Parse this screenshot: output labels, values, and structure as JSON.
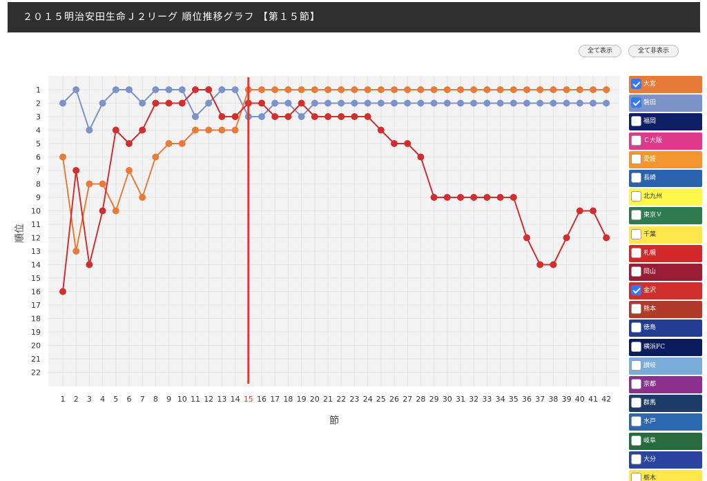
{
  "title": "２０１５明治安田生命Ｊ２リーグ 順位推移グラフ 【第１５節】",
  "buttons": {
    "show_all": "全て表示",
    "hide_all": "全て非表示"
  },
  "teams": [
    {
      "name": "大宮",
      "color": "#e87a3a",
      "checked": true
    },
    {
      "name": "磐田",
      "color": "#7b93c9",
      "checked": true
    },
    {
      "name": "福岡",
      "color": "#0f1f66",
      "checked": false
    },
    {
      "name": "Ｃ大阪",
      "color": "#e0398c",
      "checked": false
    },
    {
      "name": "愛媛",
      "color": "#f3962e",
      "checked": false
    },
    {
      "name": "長崎",
      "color": "#2a62b0",
      "checked": false
    },
    {
      "name": "北九州",
      "color": "#fff64a",
      "checked": false
    },
    {
      "name": "東京Ｖ",
      "color": "#2f7a4e",
      "checked": false
    },
    {
      "name": "千葉",
      "color": "#fde74c",
      "checked": false
    },
    {
      "name": "札幌",
      "color": "#d2292a",
      "checked": false
    },
    {
      "name": "岡山",
      "color": "#9a1c35",
      "checked": false
    },
    {
      "name": "金沢",
      "color": "#d02f2e",
      "checked": true
    },
    {
      "name": "熊本",
      "color": "#b23a2b",
      "checked": false
    },
    {
      "name": "徳島",
      "color": "#233d93",
      "checked": false
    },
    {
      "name": "横浜FC",
      "color": "#0c1a5e",
      "checked": false
    },
    {
      "name": "讃岐",
      "color": "#79acd9",
      "checked": false
    },
    {
      "name": "京都",
      "color": "#8c2f8f",
      "checked": false
    },
    {
      "name": "群馬",
      "color": "#1d3b66",
      "checked": false
    },
    {
      "name": "水戸",
      "color": "#2c68ad",
      "checked": false
    },
    {
      "name": "岐阜",
      "color": "#266a3e",
      "checked": false
    },
    {
      "name": "大分",
      "color": "#2a44a0",
      "checked": false
    },
    {
      "name": "栃木",
      "color": "#fde74c",
      "checked": false
    }
  ],
  "chart_data": {
    "type": "line",
    "xlabel": "節",
    "ylabel": "順位",
    "x": [
      1,
      2,
      3,
      4,
      5,
      6,
      7,
      8,
      9,
      10,
      11,
      12,
      13,
      14,
      15,
      16,
      17,
      18,
      19,
      20,
      21,
      22,
      23,
      24,
      25,
      26,
      27,
      28,
      29,
      30,
      31,
      32,
      33,
      34,
      35,
      36,
      37,
      38,
      39,
      40,
      41,
      42
    ],
    "ylim": [
      1,
      22
    ],
    "y_inverted": true,
    "current_round": 15,
    "current_round_color": "#e03a2f",
    "series": [
      {
        "name": "磐田",
        "color": "#7b93c9",
        "values": [
          2,
          1,
          4,
          2,
          1,
          1,
          2,
          1,
          1,
          1,
          3,
          2,
          1,
          1,
          3,
          3,
          2,
          2,
          3,
          2,
          2,
          2,
          2,
          2,
          2,
          2,
          2,
          2,
          2,
          2,
          2,
          2,
          2,
          2,
          2,
          2,
          2,
          2,
          2,
          2,
          2,
          2
        ]
      },
      {
        "name": "大宮",
        "color": "#e87a3a",
        "values": [
          6,
          13,
          8,
          8,
          10,
          7,
          9,
          6,
          5,
          5,
          4,
          4,
          4,
          4,
          1,
          1,
          1,
          1,
          1,
          1,
          1,
          1,
          1,
          1,
          1,
          1,
          1,
          1,
          1,
          1,
          1,
          1,
          1,
          1,
          1,
          1,
          1,
          1,
          1,
          1,
          1,
          1
        ]
      },
      {
        "name": "金沢",
        "color": "#d02f2e",
        "values": [
          16,
          7,
          14,
          10,
          4,
          5,
          4,
          2,
          2,
          2,
          1,
          1,
          3,
          3,
          2,
          2,
          3,
          3,
          2,
          3,
          3,
          3,
          3,
          3,
          4,
          5,
          5,
          6,
          9,
          9,
          9,
          9,
          9,
          9,
          9,
          12,
          14,
          14,
          12,
          10,
          10,
          12
        ]
      }
    ]
  }
}
